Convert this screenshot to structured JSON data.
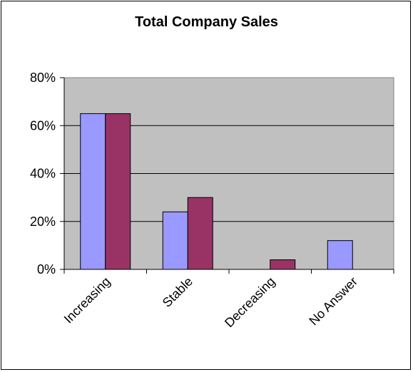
{
  "chart_data": {
    "type": "bar",
    "title": "Total Company Sales",
    "categories": [
      "Increasing",
      "Stable",
      "Decreasing",
      "No Answer"
    ],
    "series": [
      {
        "values": [
          0.65,
          0.24,
          0,
          0.12
        ],
        "color": "#9999ff"
      },
      {
        "values": [
          0.65,
          0.3,
          0.04,
          0
        ],
        "color": "#993366"
      }
    ],
    "ylim": [
      0,
      0.8
    ],
    "yticks": [
      0,
      0.2,
      0.4,
      0.6,
      0.8
    ],
    "ytick_labels": [
      "0%",
      "20%",
      "40%",
      "60%",
      "80%"
    ],
    "plot_background": "#c0c0c0",
    "grid": true,
    "legend": "none"
  }
}
